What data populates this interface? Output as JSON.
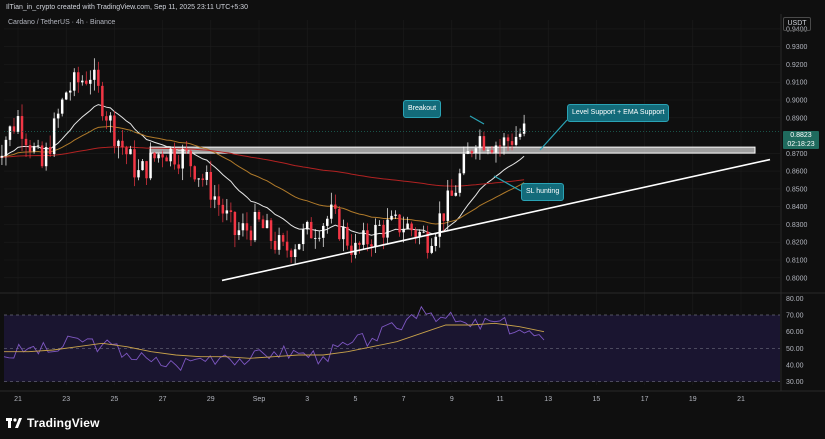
{
  "header": {
    "credit": "IlTian_in_crypto created with TradingView.com, Sep 11, 2025 23:11 UTC+5:30",
    "symbol_line": "Cardano / TetherUS · 4h · Binance",
    "currency_button": "USDT"
  },
  "footer": {
    "brand": "TradingView"
  },
  "price_tag": {
    "price": "0.8823",
    "countdown": "02:18:23"
  },
  "annotations": {
    "breakout": "Breakout",
    "level_support": "Level Support + EMA Support",
    "sl_hunting": "SL hunting"
  },
  "colors": {
    "background": "#0f0f0f",
    "candle_up": "#ffffff",
    "candle_down": "#f23645",
    "ema_white": "#e6e6e6",
    "ema_orange": "#b07a2a",
    "ema_red": "#b22222",
    "rsi_line": "#7e57c2",
    "rsi_ma": "#c8a24a",
    "callout": "#136b7a"
  },
  "chart_data": [
    {
      "type": "candlestick",
      "title": "Cardano / TetherUS · 4h · Binance",
      "y_axis_ticks": [
        "0.9400",
        "0.9300",
        "0.9200",
        "0.9100",
        "0.9000",
        "0.8900",
        "0.8700",
        "0.8600",
        "0.8500",
        "0.8400",
        "0.8300",
        "0.8200",
        "0.8100",
        "0.8000"
      ],
      "x_axis_ticks": [
        "21",
        "23",
        "25",
        "27",
        "29",
        "Sep",
        "3",
        "5",
        "7",
        "9",
        "11",
        "13",
        "15",
        "17",
        "19",
        "21"
      ],
      "ylim": [
        0.792,
        0.945
      ],
      "current_price": 0.8823,
      "resistance_zone": [
        0.8705,
        0.8735
      ],
      "trendline": {
        "from": [
          "Aug 28",
          0.7985
        ],
        "to": [
          "Sep 21",
          0.8665
        ]
      },
      "series_close_path": [
        {
          "date": "Aug 20",
          "close": 0.868
        },
        {
          "date": "Aug 21",
          "close": 0.89
        },
        {
          "date": "Aug 22",
          "close": 0.862
        },
        {
          "date": "Aug 23",
          "close": 0.905
        },
        {
          "date": "Aug 24",
          "close": 0.915
        },
        {
          "date": "Aug 25",
          "close": 0.882
        },
        {
          "date": "Aug 26",
          "close": 0.858
        },
        {
          "date": "Aug 27",
          "close": 0.872
        },
        {
          "date": "Aug 28",
          "close": 0.868
        },
        {
          "date": "Aug 29",
          "close": 0.85
        },
        {
          "date": "Aug 30",
          "close": 0.825
        },
        {
          "date": "Aug 31",
          "close": 0.83
        },
        {
          "date": "Sep 1",
          "close": 0.815
        },
        {
          "date": "Sep 2",
          "close": 0.825
        },
        {
          "date": "Sep 3",
          "close": 0.835
        },
        {
          "date": "Sep 4",
          "close": 0.815
        },
        {
          "date": "Sep 5",
          "close": 0.828
        },
        {
          "date": "Sep 6",
          "close": 0.83
        },
        {
          "date": "Sep 7",
          "close": 0.822
        },
        {
          "date": "Sep 8",
          "close": 0.845
        },
        {
          "date": "Sep 9",
          "close": 0.88
        },
        {
          "date": "Sep 10",
          "close": 0.875
        },
        {
          "date": "Sep 11",
          "close": 0.8823
        }
      ]
    },
    {
      "type": "line",
      "title": "RSI",
      "y_axis_ticks": [
        "80.00",
        "70.00",
        "60.00",
        "50.00",
        "40.00",
        "30.00"
      ],
      "ylim": [
        28,
        82
      ],
      "bands": [
        70,
        50,
        30
      ],
      "series": [
        {
          "name": "",
          "values": [
            45,
            50,
            48,
            56,
            52,
            47,
            42,
            40,
            44,
            46,
            43,
            48,
            47,
            45,
            52,
            56,
            62,
            75,
            68,
            63,
            66,
            61,
            55
          ]
        },
        {
          "name": "",
          "values": [
            48,
            48,
            49,
            51,
            53,
            51,
            48,
            46,
            45,
            45,
            44,
            45,
            46,
            46,
            48,
            51,
            54,
            59,
            64,
            64,
            65,
            63,
            60
          ]
        }
      ]
    }
  ]
}
